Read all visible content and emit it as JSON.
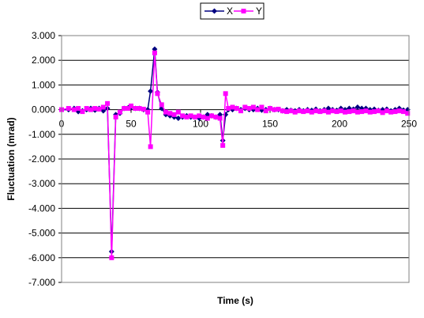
{
  "chart_data": {
    "type": "line",
    "title": "",
    "xlabel": "Time (s)",
    "ylabel": "Fluctuation (mrad)",
    "xlim": [
      0,
      250
    ],
    "ylim": [
      -7.0,
      3.0
    ],
    "x_ticks": [
      "0",
      "50",
      "100",
      "150",
      "200",
      "250"
    ],
    "y_ticks": [
      "3.000",
      "2.000",
      "1.000",
      "0.000",
      "-1.000",
      "-2.000",
      "-3.000",
      "-4.000",
      "-5.000",
      "-6.000",
      "-7.000"
    ],
    "grid": "horizontal",
    "legend_position": "top",
    "series": [
      {
        "name": "X",
        "color": "#000080",
        "marker": "diamond",
        "points": [
          [
            0,
            0.0
          ],
          [
            5,
            0.0
          ],
          [
            9,
            0.05
          ],
          [
            12,
            -0.08
          ],
          [
            15,
            -0.05
          ],
          [
            18,
            0.0
          ],
          [
            21,
            0.05
          ],
          [
            24,
            -0.02
          ],
          [
            27,
            0.05
          ],
          [
            30,
            -0.05
          ],
          [
            33,
            0.05
          ],
          [
            36,
            -5.75
          ],
          [
            39,
            -0.2
          ],
          [
            42,
            -0.15
          ],
          [
            45,
            0.05
          ],
          [
            48,
            0.08
          ],
          [
            50,
            0.1
          ],
          [
            53,
            0.05
          ],
          [
            56,
            0.05
          ],
          [
            59,
            0.0
          ],
          [
            62,
            0.0
          ],
          [
            64,
            0.75
          ],
          [
            67,
            2.45
          ],
          [
            69,
            0.7
          ],
          [
            72,
            0.05
          ],
          [
            75,
            -0.2
          ],
          [
            78,
            -0.25
          ],
          [
            81,
            -0.3
          ],
          [
            84,
            -0.35
          ],
          [
            87,
            -0.3
          ],
          [
            90,
            -0.25
          ],
          [
            93,
            -0.3
          ],
          [
            96,
            -0.3
          ],
          [
            99,
            -0.35
          ],
          [
            102,
            -0.3
          ],
          [
            105,
            -0.2
          ],
          [
            108,
            -0.25
          ],
          [
            111,
            -0.3
          ],
          [
            114,
            -0.2
          ],
          [
            116,
            -1.25
          ],
          [
            118,
            -0.2
          ],
          [
            120,
            0.0
          ],
          [
            123,
            0.0
          ],
          [
            126,
            0.05
          ],
          [
            129,
            0.0
          ],
          [
            132,
            0.05
          ],
          [
            135,
            0.0
          ],
          [
            138,
            0.0
          ],
          [
            141,
            0.05
          ],
          [
            144,
            -0.02
          ],
          [
            147,
            0.0
          ],
          [
            150,
            0.05
          ],
          [
            153,
            0.0
          ],
          [
            156,
            0.0
          ],
          [
            159,
            -0.05
          ],
          [
            162,
            0.0
          ],
          [
            165,
            -0.03
          ],
          [
            168,
            -0.05
          ],
          [
            171,
            0.0
          ],
          [
            174,
            -0.05
          ],
          [
            177,
            0.0
          ],
          [
            180,
            -0.03
          ],
          [
            183,
            0.02
          ],
          [
            186,
            -0.05
          ],
          [
            189,
            0.0
          ],
          [
            192,
            0.05
          ],
          [
            195,
            0.0
          ],
          [
            198,
            -0.03
          ],
          [
            201,
            0.05
          ],
          [
            204,
            0.0
          ],
          [
            207,
            0.05
          ],
          [
            210,
            0.02
          ],
          [
            213,
            0.1
          ],
          [
            216,
            0.05
          ],
          [
            219,
            0.05
          ],
          [
            222,
            0.0
          ],
          [
            225,
            0.02
          ],
          [
            228,
            -0.03
          ],
          [
            231,
            0.0
          ],
          [
            234,
            0.02
          ],
          [
            237,
            -0.05
          ],
          [
            240,
            0.0
          ],
          [
            243,
            0.05
          ],
          [
            246,
            -0.02
          ],
          [
            249,
            0.0
          ]
        ]
      },
      {
        "name": "Y",
        "color": "#ff00ff",
        "marker": "square",
        "points": [
          [
            0,
            0.0
          ],
          [
            5,
            0.05
          ],
          [
            9,
            0.0
          ],
          [
            12,
            0.05
          ],
          [
            15,
            -0.08
          ],
          [
            18,
            0.05
          ],
          [
            21,
            0.0
          ],
          [
            24,
            0.05
          ],
          [
            27,
            0.02
          ],
          [
            30,
            0.1
          ],
          [
            33,
            0.25
          ],
          [
            36,
            -6.0
          ],
          [
            39,
            -0.3
          ],
          [
            42,
            -0.1
          ],
          [
            45,
            0.05
          ],
          [
            48,
            0.05
          ],
          [
            50,
            0.15
          ],
          [
            53,
            0.05
          ],
          [
            56,
            0.05
          ],
          [
            59,
            0.02
          ],
          [
            62,
            -0.1
          ],
          [
            64,
            -1.5
          ],
          [
            67,
            2.3
          ],
          [
            69,
            0.65
          ],
          [
            72,
            0.2
          ],
          [
            75,
            -0.1
          ],
          [
            78,
            -0.15
          ],
          [
            81,
            -0.2
          ],
          [
            84,
            -0.1
          ],
          [
            87,
            -0.25
          ],
          [
            90,
            -0.3
          ],
          [
            93,
            -0.25
          ],
          [
            96,
            -0.3
          ],
          [
            99,
            -0.25
          ],
          [
            102,
            -0.3
          ],
          [
            105,
            -0.35
          ],
          [
            108,
            -0.25
          ],
          [
            111,
            -0.3
          ],
          [
            114,
            -0.35
          ],
          [
            116,
            -1.45
          ],
          [
            118,
            0.65
          ],
          [
            120,
            0.05
          ],
          [
            123,
            0.1
          ],
          [
            126,
            0.05
          ],
          [
            129,
            -0.05
          ],
          [
            132,
            0.1
          ],
          [
            135,
            0.05
          ],
          [
            138,
            0.1
          ],
          [
            141,
            0.0
          ],
          [
            144,
            0.1
          ],
          [
            147,
            -0.05
          ],
          [
            150,
            0.05
          ],
          [
            153,
            0.0
          ],
          [
            156,
            0.02
          ],
          [
            159,
            -0.05
          ],
          [
            162,
            -0.08
          ],
          [
            165,
            -0.05
          ],
          [
            168,
            -0.1
          ],
          [
            171,
            -0.05
          ],
          [
            174,
            -0.08
          ],
          [
            177,
            -0.05
          ],
          [
            180,
            -0.1
          ],
          [
            183,
            -0.05
          ],
          [
            186,
            -0.08
          ],
          [
            189,
            -0.05
          ],
          [
            192,
            -0.1
          ],
          [
            195,
            -0.05
          ],
          [
            198,
            -0.08
          ],
          [
            201,
            -0.05
          ],
          [
            204,
            -0.1
          ],
          [
            207,
            -0.08
          ],
          [
            210,
            -0.05
          ],
          [
            213,
            -0.1
          ],
          [
            216,
            -0.08
          ],
          [
            219,
            -0.05
          ],
          [
            222,
            -0.1
          ],
          [
            225,
            -0.08
          ],
          [
            228,
            -0.05
          ],
          [
            231,
            -0.12
          ],
          [
            234,
            -0.05
          ],
          [
            237,
            -0.1
          ],
          [
            240,
            -0.08
          ],
          [
            243,
            -0.05
          ],
          [
            246,
            -0.08
          ],
          [
            249,
            -0.15
          ]
        ]
      }
    ]
  }
}
